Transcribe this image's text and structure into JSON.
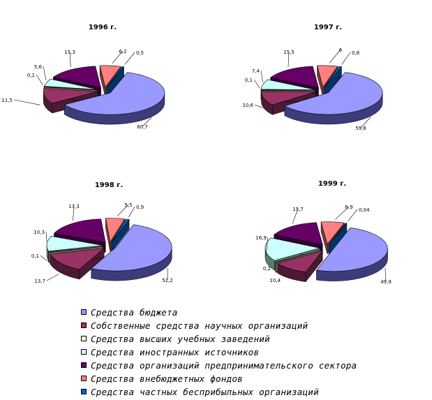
{
  "chart_data": [
    {
      "type": "pie",
      "title": "1996 г.",
      "categories": [
        "Средства бюджета",
        "Собственные средства научных организаций",
        "Средства высших учебных заведений",
        "Средства иностранных источников",
        "Средства организаций предпринимательского сектора",
        "Средства внебюджетных фондов",
        "Средства частных бесприбыльных организаций"
      ],
      "values": [
        60.7,
        11.5,
        0.1,
        5.6,
        15.3,
        6.2,
        0.5
      ],
      "labels": [
        "60,7",
        "11,5",
        "0,1",
        "5,6",
        "15,3",
        "6,2",
        "0,5"
      ]
    },
    {
      "type": "pie",
      "title": "1997 г.",
      "categories": [
        "Средства бюджета",
        "Собственные средства научных организаций",
        "Средства высших учебных заведений",
        "Средства иностранных источников",
        "Средства организаций предпринимательского сектора",
        "Средства внебюджетных фондов",
        "Средства частных бесприбыльных организаций"
      ],
      "values": [
        59.6,
        10.6,
        0.1,
        7.4,
        15.5,
        6,
        0.8
      ],
      "labels": [
        "59,6",
        "10,6",
        "0,1",
        "7,4",
        "15,5",
        "6",
        "0,8"
      ]
    },
    {
      "type": "pie",
      "title": "1998 г.",
      "categories": [
        "Средства бюджета",
        "Собственные средства научных организаций",
        "Средства высших учебных заведений",
        "Средства иностранных источников",
        "Средства организаций предпринимательского сектора",
        "Средства внебюджетных фондов",
        "Средства частных бесприбыльных организаций"
      ],
      "values": [
        52.2,
        13.7,
        0.1,
        10.3,
        17.3,
        5.5,
        0.9
      ],
      "labels": [
        "52,2",
        "13,7",
        "0,1",
        "10,3",
        "17,3",
        "5,5",
        "0,9"
      ]
    },
    {
      "type": "pie",
      "title": "1999 г.",
      "categories": [
        "Средства бюджета",
        "Собственные средства научных организаций",
        "Средства высших учебных заведений",
        "Средства иностранных источников",
        "Средства организаций предпринимательского сектора",
        "Средства внебюджетных фондов",
        "Средства частных бесприбыльных организаций"
      ],
      "values": [
        49.9,
        10.4,
        0.2,
        16.9,
        15.7,
        6.9,
        0.04
      ],
      "labels": [
        "49,9",
        "10,4",
        "0,2",
        "16,9",
        "15,7",
        "6,9",
        "0,04"
      ]
    }
  ],
  "legend": {
    "placement": "bottom",
    "items": [
      {
        "label": "Средства бюджета",
        "color": "#9999ff"
      },
      {
        "label": "Собственные средства научных организаций",
        "color": "#993366"
      },
      {
        "label": "Средства высших учебных заведений",
        "color": "#ffffcc"
      },
      {
        "label": "Средства иностранных источников",
        "color": "#ccffff"
      },
      {
        "label": "Средства организаций предпринимательского сектора",
        "color": "#660066"
      },
      {
        "label": "Средства внебюджетных фондов",
        "color": "#ff8080"
      },
      {
        "label": "Средства частных бесприбыльных организаций",
        "color": "#0066cc"
      }
    ]
  },
  "style": {
    "side_colors": [
      "#3c3c7a",
      "#4c1a33",
      "#7a7a5a",
      "#5a7a7a",
      "#330033",
      "#7a3c3c",
      "#003366"
    ]
  }
}
